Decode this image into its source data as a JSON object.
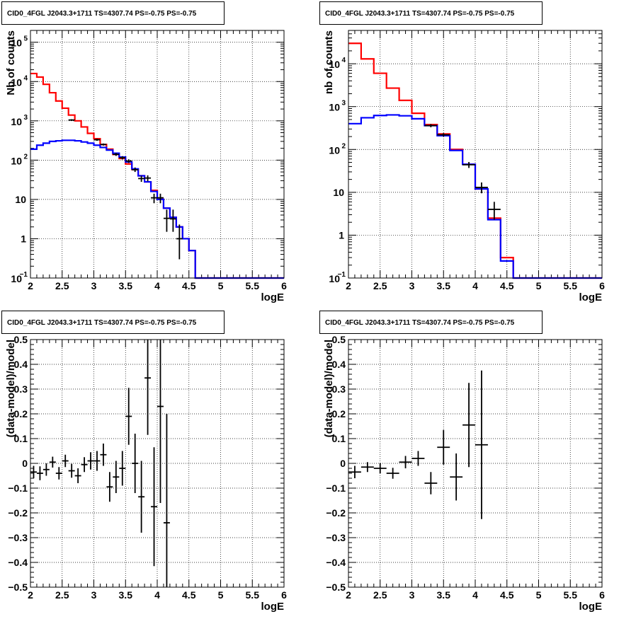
{
  "chart_data": [
    {
      "type": "step-histogram",
      "title": "CID0_4FGL J2043.3+1711 TS=4307.74 PS=-0.75 PS=-0.75",
      "xlabel": "logE",
      "ylabel": "Nb of counts",
      "xlim": [
        2,
        6
      ],
      "ylim": [
        0.1,
        200000
      ],
      "yscale": "log",
      "grid": true,
      "x_ticks": [
        "2",
        "2.5",
        "3",
        "3.5",
        "4",
        "4.5",
        "5",
        "5.5",
        "6"
      ],
      "y_ticks": [
        {
          "value": 0.1,
          "base": "10",
          "exp": "−1"
        },
        {
          "value": 1,
          "label": "1"
        },
        {
          "value": 10,
          "label": "10"
        },
        {
          "value": 100,
          "base": "10",
          "exp": "2"
        },
        {
          "value": 1000,
          "base": "10",
          "exp": "3"
        },
        {
          "value": 10000,
          "base": "10",
          "exp": "4"
        },
        {
          "value": 100000,
          "base": "10",
          "exp": "5"
        }
      ],
      "bin_edges": [
        2.0,
        2.1,
        2.2,
        2.3,
        2.4,
        2.5,
        2.6,
        2.7,
        2.8,
        2.9,
        3.0,
        3.1,
        3.2,
        3.3,
        3.4,
        3.5,
        3.6,
        3.7,
        3.8,
        3.9,
        4.0,
        4.1,
        4.2,
        4.3,
        4.4,
        4.5,
        4.6,
        4.7,
        4.8,
        4.9,
        5.0,
        5.1,
        5.2,
        5.3,
        5.4,
        5.5,
        5.6,
        5.7,
        5.8,
        5.9,
        6.0
      ],
      "series": [
        {
          "name": "",
          "color": "#ff0000",
          "values": [
            16000,
            13000,
            8500,
            5200,
            3200,
            2100,
            1400,
            1000,
            700,
            480,
            350,
            250,
            190,
            140,
            110,
            80,
            58,
            40,
            28,
            17,
            10,
            6,
            3.5,
            2,
            1,
            0.5,
            0.1,
            0.1,
            0.1,
            0.1,
            0.1,
            0.1,
            0.1,
            0.1,
            0.1,
            0.1,
            0.1,
            0.1,
            0.1,
            0.1
          ]
        },
        {
          "name": "",
          "color": "#0000ff",
          "values": [
            190,
            240,
            270,
            300,
            310,
            320,
            320,
            310,
            290,
            270,
            240,
            210,
            180,
            150,
            120,
            90,
            60,
            40,
            28,
            16,
            10,
            6,
            3.5,
            2,
            1,
            0.5,
            0.1,
            0.1,
            0.1,
            0.1,
            0.1,
            0.1,
            0.1,
            0.1,
            0.1,
            0.1,
            0.1,
            0.1,
            0.1,
            0.1
          ]
        }
      ],
      "points": [
        {
          "x": 2.65,
          "y": 1050,
          "ylo": 1000,
          "yhi": 1100
        },
        {
          "x": 3.05,
          "y": 330,
          "ylo": 310,
          "yhi": 350
        },
        {
          "x": 3.15,
          "y": 250,
          "ylo": 235,
          "yhi": 265
        },
        {
          "x": 3.35,
          "y": 140,
          "ylo": 128,
          "yhi": 152
        },
        {
          "x": 3.45,
          "y": 115,
          "ylo": 104,
          "yhi": 126
        },
        {
          "x": 3.55,
          "y": 95,
          "ylo": 85,
          "yhi": 105
        },
        {
          "x": 3.65,
          "y": 57,
          "ylo": 50,
          "yhi": 65
        },
        {
          "x": 3.75,
          "y": 34,
          "ylo": 28,
          "yhi": 40
        },
        {
          "x": 3.85,
          "y": 35,
          "ylo": 29,
          "yhi": 41
        },
        {
          "x": 3.95,
          "y": 11,
          "ylo": 8,
          "yhi": 14
        },
        {
          "x": 4.05,
          "y": 11,
          "ylo": 8,
          "yhi": 14
        },
        {
          "x": 4.15,
          "y": 3.3,
          "ylo": 1.5,
          "yhi": 5.5
        },
        {
          "x": 4.25,
          "y": 3.2,
          "ylo": 1.5,
          "yhi": 5.5
        },
        {
          "x": 4.35,
          "y": 1,
          "ylo": 0.3,
          "yhi": 2.3
        }
      ]
    },
    {
      "type": "step-histogram",
      "title": "CID0_4FGL J2043.3+1711 TS=4307.74 PS=-0.75 PS=-0.75",
      "xlabel": "logE",
      "ylabel": "nb of counts",
      "xlim": [
        2,
        6
      ],
      "ylim": [
        0.1,
        60000
      ],
      "yscale": "log",
      "grid": true,
      "x_ticks": [
        "2",
        "2.5",
        "3",
        "3.5",
        "4",
        "4.5",
        "5",
        "5.5",
        "6"
      ],
      "y_ticks": [
        {
          "value": 0.1,
          "base": "10",
          "exp": "−1"
        },
        {
          "value": 1,
          "label": "1"
        },
        {
          "value": 10,
          "label": "10"
        },
        {
          "value": 100,
          "base": "10",
          "exp": "2"
        },
        {
          "value": 1000,
          "base": "10",
          "exp": "3"
        },
        {
          "value": 10000,
          "base": "10",
          "exp": "4"
        }
      ],
      "bin_edges": [
        2.0,
        2.2,
        2.4,
        2.6,
        2.8,
        3.0,
        3.2,
        3.4,
        3.6,
        3.8,
        4.0,
        4.2,
        4.4,
        4.6,
        4.8,
        5.0,
        5.2,
        5.4,
        5.6,
        5.8,
        6.0
      ],
      "series": [
        {
          "name": "",
          "color": "#ff0000",
          "values": [
            30000,
            13000,
            6000,
            2700,
            1400,
            700,
            380,
            230,
            100,
            45,
            12,
            2.5,
            0.3,
            0.1,
            0.1,
            0.1,
            0.1,
            0.1,
            0.1,
            0.1
          ]
        },
        {
          "name": "",
          "color": "#0000ff",
          "values": [
            400,
            550,
            620,
            640,
            610,
            520,
            360,
            210,
            95,
            45,
            12,
            2.3,
            0.25,
            0.1,
            0.1,
            0.1,
            0.1,
            0.1,
            0.1,
            0.1
          ]
        }
      ],
      "points": [
        {
          "x": 3.3,
          "y": 360,
          "ylo": 330,
          "yhi": 390
        },
        {
          "x": 3.5,
          "y": 220,
          "ylo": 200,
          "yhi": 240
        },
        {
          "x": 3.9,
          "y": 44,
          "ylo": 37,
          "yhi": 51
        },
        {
          "x": 4.1,
          "y": 13,
          "ylo": 9.5,
          "yhi": 17
        },
        {
          "x": 4.3,
          "y": 4,
          "ylo": 2.3,
          "yhi": 6
        }
      ]
    },
    {
      "type": "scatter-errorbars",
      "title": "CID0_4FGL J2043.3+1711 TS=4307.74 PS=-0.75 PS=-0.75",
      "xlabel": "logE",
      "ylabel": "(data-model)/model",
      "xlim": [
        2,
        6
      ],
      "ylim": [
        -0.5,
        0.5
      ],
      "yscale": "linear",
      "grid": true,
      "x_ticks": [
        "2",
        "2.5",
        "3",
        "3.5",
        "4",
        "4.5",
        "5",
        "5.5",
        "6"
      ],
      "y_ticks": [
        "−0.5",
        "−0.4",
        "−0.3",
        "−0.2",
        "−0.1",
        "0",
        "0.1",
        "0.2",
        "0.3",
        "0.4",
        "0.5"
      ],
      "y_tick_values": [
        -0.5,
        -0.4,
        -0.3,
        -0.2,
        -0.1,
        0,
        0.1,
        0.2,
        0.3,
        0.4,
        0.5
      ],
      "bin_half_width": 0.05,
      "points": [
        {
          "x": 2.05,
          "y": -0.035,
          "err": 0.025
        },
        {
          "x": 2.15,
          "y": -0.04,
          "err": 0.028
        },
        {
          "x": 2.25,
          "y": -0.025,
          "err": 0.025
        },
        {
          "x": 2.35,
          "y": 0.005,
          "err": 0.022
        },
        {
          "x": 2.45,
          "y": -0.04,
          "err": 0.025
        },
        {
          "x": 2.55,
          "y": 0.01,
          "err": 0.025
        },
        {
          "x": 2.65,
          "y": -0.03,
          "err": 0.028
        },
        {
          "x": 2.75,
          "y": -0.05,
          "err": 0.03
        },
        {
          "x": 2.85,
          "y": -0.005,
          "err": 0.03
        },
        {
          "x": 2.95,
          "y": 0.01,
          "err": 0.035
        },
        {
          "x": 3.05,
          "y": 0.01,
          "err": 0.04
        },
        {
          "x": 3.15,
          "y": 0.035,
          "err": 0.045
        },
        {
          "x": 3.25,
          "y": -0.095,
          "err": 0.06
        },
        {
          "x": 3.35,
          "y": -0.055,
          "err": 0.065
        },
        {
          "x": 3.45,
          "y": -0.02,
          "err": 0.07
        },
        {
          "x": 3.55,
          "y": 0.19,
          "err": 0.115
        },
        {
          "x": 3.65,
          "y": 0.0,
          "err": 0.12
        },
        {
          "x": 3.75,
          "y": -0.135,
          "err": 0.145
        },
        {
          "x": 3.85,
          "y": 0.345,
          "err": 0.23
        },
        {
          "x": 3.95,
          "y": -0.175,
          "err": 0.24
        },
        {
          "x": 4.05,
          "y": 0.23,
          "err": 0.39
        },
        {
          "x": 4.15,
          "y": -0.24,
          "err": 0.44
        }
      ]
    },
    {
      "type": "scatter-errorbars",
      "title": "CID0_4FGL J2043.3+1711 TS=4307.74 PS=-0.75 PS=-0.75",
      "xlabel": "logE",
      "ylabel": "(data-model)/model",
      "xlim": [
        2,
        6
      ],
      "ylim": [
        -0.5,
        0.5
      ],
      "yscale": "linear",
      "grid": true,
      "x_ticks": [
        "2",
        "2.5",
        "3",
        "3.5",
        "4",
        "4.5",
        "5",
        "5.5",
        "6"
      ],
      "y_ticks": [
        "−0.5",
        "−0.4",
        "−0.3",
        "−0.2",
        "−0.1",
        "0",
        "0.1",
        "0.2",
        "0.3",
        "0.4",
        "0.5"
      ],
      "y_tick_values": [
        -0.5,
        -0.4,
        -0.3,
        -0.2,
        -0.1,
        0,
        0.1,
        0.2,
        0.3,
        0.4,
        0.5
      ],
      "bin_half_width": 0.1,
      "points": [
        {
          "x": 2.1,
          "y": -0.035,
          "err": 0.025
        },
        {
          "x": 2.3,
          "y": -0.015,
          "err": 0.02
        },
        {
          "x": 2.5,
          "y": -0.02,
          "err": 0.02
        },
        {
          "x": 2.7,
          "y": -0.04,
          "err": 0.022
        },
        {
          "x": 2.9,
          "y": 0.005,
          "err": 0.025
        },
        {
          "x": 3.1,
          "y": 0.02,
          "err": 0.03
        },
        {
          "x": 3.3,
          "y": -0.08,
          "err": 0.045
        },
        {
          "x": 3.5,
          "y": 0.065,
          "err": 0.07
        },
        {
          "x": 3.7,
          "y": -0.055,
          "err": 0.095
        },
        {
          "x": 3.9,
          "y": 0.155,
          "err": 0.17
        },
        {
          "x": 4.1,
          "y": 0.075,
          "err": 0.3
        }
      ]
    }
  ]
}
